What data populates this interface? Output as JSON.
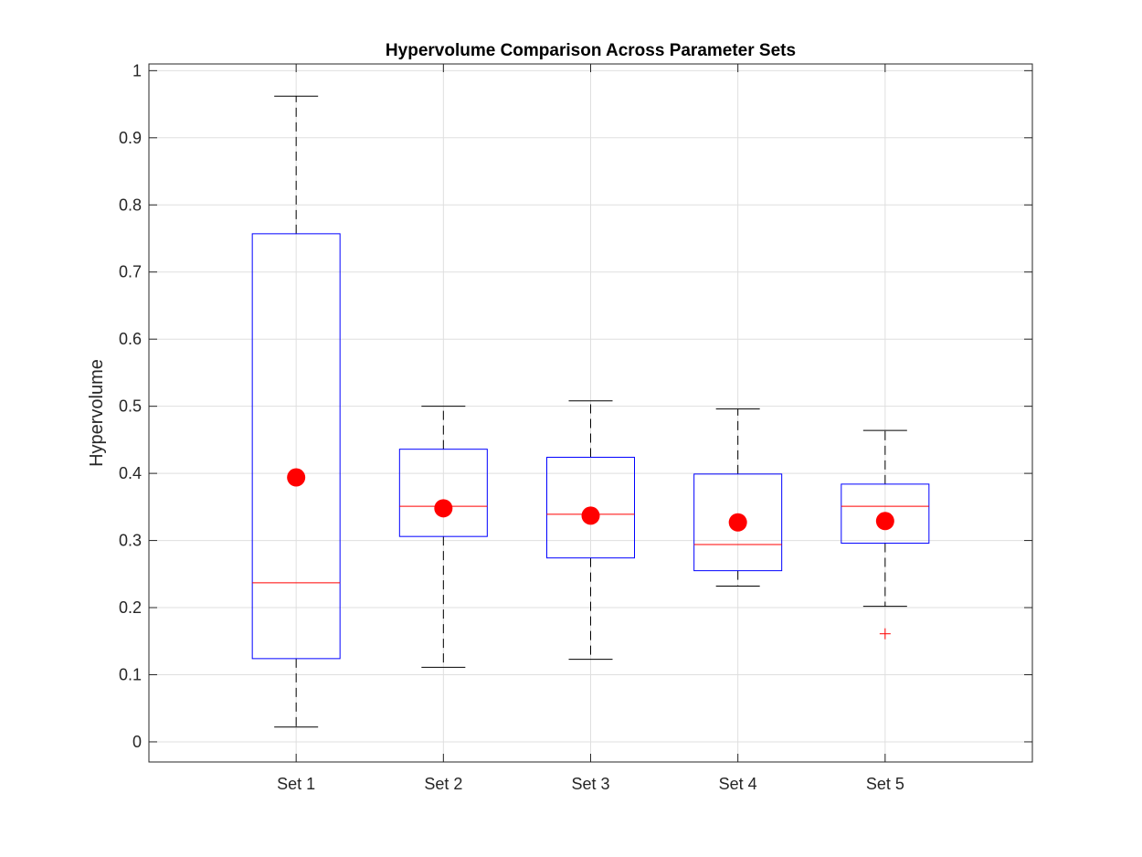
{
  "chart_data": {
    "type": "box",
    "title": "Hypervolume Comparison Across Parameter Sets",
    "xlabel": "",
    "ylabel": "Hypervolume",
    "ylim": [
      -0.03,
      1.01
    ],
    "yticks": [
      0,
      0.1,
      0.2,
      0.3,
      0.4,
      0.5,
      0.6,
      0.7,
      0.8,
      0.9,
      1
    ],
    "ytick_labels": [
      "0",
      "0.1",
      "0.2",
      "0.3",
      "0.4",
      "0.5",
      "0.6",
      "0.7",
      "0.8",
      "0.9",
      "1"
    ],
    "grid": true,
    "categories": [
      "Set 1",
      "Set 2",
      "Set 3",
      "Set 4",
      "Set 5"
    ],
    "boxes": [
      {
        "name": "Set 1",
        "whisker_low": 0.022,
        "q1": 0.124,
        "median": 0.237,
        "q3": 0.757,
        "whisker_high": 0.962,
        "mean": 0.394,
        "outliers": []
      },
      {
        "name": "Set 2",
        "whisker_low": 0.111,
        "q1": 0.306,
        "median": 0.351,
        "q3": 0.436,
        "whisker_high": 0.5,
        "mean": 0.348,
        "outliers": []
      },
      {
        "name": "Set 3",
        "whisker_low": 0.123,
        "q1": 0.274,
        "median": 0.339,
        "q3": 0.424,
        "whisker_high": 0.508,
        "mean": 0.337,
        "outliers": []
      },
      {
        "name": "Set 4",
        "whisker_low": 0.232,
        "q1": 0.255,
        "median": 0.294,
        "q3": 0.399,
        "whisker_high": 0.496,
        "mean": 0.327,
        "outliers": []
      },
      {
        "name": "Set 5",
        "whisker_low": 0.202,
        "q1": 0.296,
        "median": 0.351,
        "q3": 0.384,
        "whisker_high": 0.464,
        "mean": 0.329,
        "outliers": [
          0.161
        ]
      }
    ],
    "colors": {
      "box": "#0000ff",
      "median": "#ff0000",
      "mean_marker": "#ff0000",
      "whisker": "#000000",
      "outlier": "#ff0000",
      "grid": "#dfdfdf",
      "axes": "#262626"
    }
  }
}
